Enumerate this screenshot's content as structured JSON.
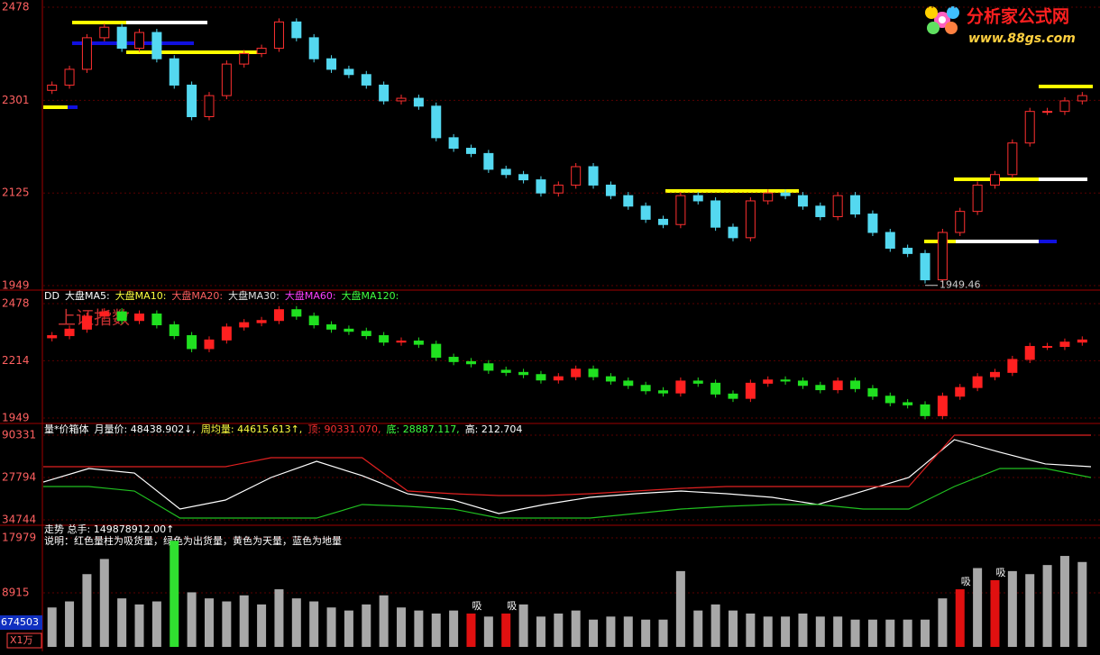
{
  "logo": {
    "title": "分析家公式网",
    "url": "www.88gs.com"
  },
  "chart_data": [
    {
      "type": "candlestick",
      "ylim": [
        1949,
        2478
      ],
      "yticks": [
        2478,
        2301,
        2125,
        1949
      ],
      "up_color": "#ff3030",
      "down_color": "#54d8f0",
      "open": [
        2320,
        2330,
        2360,
        2420,
        2440,
        2400,
        2430,
        2380,
        2330,
        2270,
        2310,
        2370,
        2390,
        2400,
        2450,
        2420,
        2380,
        2360,
        2350,
        2330,
        2300,
        2305,
        2290,
        2230,
        2210,
        2200,
        2170,
        2160,
        2150,
        2125,
        2140,
        2175,
        2140,
        2120,
        2100,
        2075,
        2065,
        2120,
        2110,
        2060,
        2040,
        2110,
        2125,
        2120,
        2100,
        2080,
        2120,
        2085,
        2050,
        2020,
        2010,
        1960,
        2050,
        2090,
        2140,
        2160,
        2220,
        2280,
        2280,
        2300
      ],
      "close": [
        2330,
        2360,
        2420,
        2440,
        2400,
        2430,
        2380,
        2330,
        2270,
        2310,
        2370,
        2390,
        2400,
        2450,
        2420,
        2380,
        2360,
        2350,
        2330,
        2300,
        2305,
        2290,
        2230,
        2210,
        2200,
        2170,
        2160,
        2150,
        2125,
        2140,
        2175,
        2140,
        2120,
        2100,
        2075,
        2065,
        2120,
        2110,
        2060,
        2040,
        2110,
        2125,
        2120,
        2100,
        2080,
        2120,
        2085,
        2050,
        2020,
        2010,
        1960,
        2050,
        2090,
        2140,
        2160,
        2220,
        2280,
        2280,
        2300,
        2310
      ],
      "annotation": {
        "text": "1949.46",
        "value": 1949.46,
        "at": 50
      }
    },
    {
      "type": "candlestick",
      "ylim": [
        1949,
        2478
      ],
      "yticks": [
        2478,
        2214,
        1949
      ],
      "up_color": "#ff2020",
      "down_color": "#20e020",
      "watermark": "上证指数",
      "header": [
        {
          "text": "DD",
          "color": "#ffffff"
        },
        {
          "text": "大盘MA5:",
          "color": "#ffffff"
        },
        {
          "text": "大盘MA10:",
          "color": "#ffff40"
        },
        {
          "text": "大盘MA20:",
          "color": "#ff6060"
        },
        {
          "text": "大盘MA30:",
          "color": "#e0e0e0"
        },
        {
          "text": "大盘MA60:",
          "color": "#ff40ff"
        },
        {
          "text": "大盘MA120:",
          "color": "#40ff40"
        }
      ]
    },
    {
      "type": "line",
      "ylim": [
        -34744,
        90331
      ],
      "yticks": [
        90331,
        27794,
        {
          "value": -34744,
          "label": "34744"
        }
      ],
      "header": [
        {
          "text": "量*价箱体",
          "color": "#ffffff"
        },
        {
          "text": "月量价: 48438.902↓,",
          "color": "#ffffff"
        },
        {
          "text": "周均量: 44615.613↑,",
          "color": "#ffff40"
        },
        {
          "text": "顶: 90331.070,",
          "color": "#ff3030"
        },
        {
          "text": "底: 28887.117,",
          "color": "#40ff40"
        },
        {
          "text": "高: 212.704",
          "color": "#ffffff"
        }
      ],
      "series": [
        {
          "color": "#ffffff",
          "values": [
            21100,
            41100,
            34400,
            -18800,
            -5500,
            27800,
            51700,
            30500,
            3800,
            -5500,
            -25400,
            -12100,
            -1500,
            3800,
            7800,
            3800,
            -1500,
            -12100,
            7800,
            27800,
            83700,
            65100,
            47800,
            43800
          ]
        },
        {
          "color": "#e02020",
          "values": [
            43800,
            43800,
            43800,
            43800,
            43800,
            57100,
            57100,
            57100,
            7800,
            3800,
            1200,
            1200,
            3800,
            7800,
            11800,
            14500,
            14500,
            14500,
            14500,
            14500,
            90300,
            90300,
            90300,
            90300
          ]
        },
        {
          "color": "#20c020",
          "values": [
            14500,
            14500,
            7800,
            -32100,
            -32100,
            -32100,
            -32100,
            -12100,
            -14800,
            -18800,
            -32100,
            -32100,
            -32100,
            -25400,
            -18800,
            -14800,
            -12100,
            -12100,
            -18800,
            -18800,
            14500,
            41100,
            41100,
            27800
          ]
        }
      ]
    },
    {
      "type": "bar",
      "ylim": [
        0,
        17979
      ],
      "yticks": [
        17979,
        8915
      ],
      "header": [
        {
          "text": "走势  总手: 149878912.00↑",
          "color": "#ffffff"
        },
        {
          "text": "说明：红色量柱为吸货量，绿色为出货量，黄色为天量，蓝色为地量",
          "color": "#ffffff"
        }
      ],
      "values": [
        6500,
        7500,
        12000,
        14500,
        8000,
        7000,
        7500,
        17500,
        9000,
        8000,
        7500,
        8500,
        7000,
        9500,
        8000,
        7500,
        6500,
        6000,
        7000,
        8500,
        6500,
        6000,
        5500,
        6000,
        5500,
        5000,
        5500,
        7000,
        5000,
        5500,
        6000,
        4500,
        5000,
        5000,
        4500,
        4500,
        12500,
        6000,
        7000,
        6000,
        5500,
        5000,
        5000,
        5500,
        5000,
        5000,
        4500,
        4500,
        4500,
        4500,
        4500,
        8000,
        9500,
        13000,
        11000,
        12500,
        12000,
        13500,
        15000,
        14000
      ],
      "colors": [
        "#a8a8a8",
        "#a8a8a8",
        "#a8a8a8",
        "#a8a8a8",
        "#a8a8a8",
        "#a8a8a8",
        "#a8a8a8",
        "#30e030",
        "#a8a8a8",
        "#a8a8a8",
        "#a8a8a8",
        "#a8a8a8",
        "#a8a8a8",
        "#a8a8a8",
        "#a8a8a8",
        "#a8a8a8",
        "#a8a8a8",
        "#a8a8a8",
        "#a8a8a8",
        "#a8a8a8",
        "#a8a8a8",
        "#a8a8a8",
        "#a8a8a8",
        "#a8a8a8",
        "#e01010",
        "#a8a8a8",
        "#e01010",
        "#a8a8a8",
        "#a8a8a8",
        "#a8a8a8",
        "#a8a8a8",
        "#a8a8a8",
        "#a8a8a8",
        "#a8a8a8",
        "#a8a8a8",
        "#a8a8a8",
        "#a8a8a8",
        "#a8a8a8",
        "#a8a8a8",
        "#a8a8a8",
        "#a8a8a8",
        "#a8a8a8",
        "#a8a8a8",
        "#a8a8a8",
        "#a8a8a8",
        "#a8a8a8",
        "#a8a8a8",
        "#a8a8a8",
        "#a8a8a8",
        "#a8a8a8",
        "#a8a8a8",
        "#a8a8a8",
        "#e01010",
        "#a8a8a8",
        "#e01010",
        "#a8a8a8",
        "#a8a8a8",
        "#a8a8a8",
        "#a8a8a8",
        "#a8a8a8"
      ],
      "markers": [
        {
          "label": "吸",
          "at": 24
        },
        {
          "label": "吸",
          "at": 26
        },
        {
          "label": "吸",
          "at": 52
        },
        {
          "label": "吸",
          "at": 54
        }
      ],
      "scale_labels": [
        "674503",
        "X1万"
      ]
    }
  ]
}
